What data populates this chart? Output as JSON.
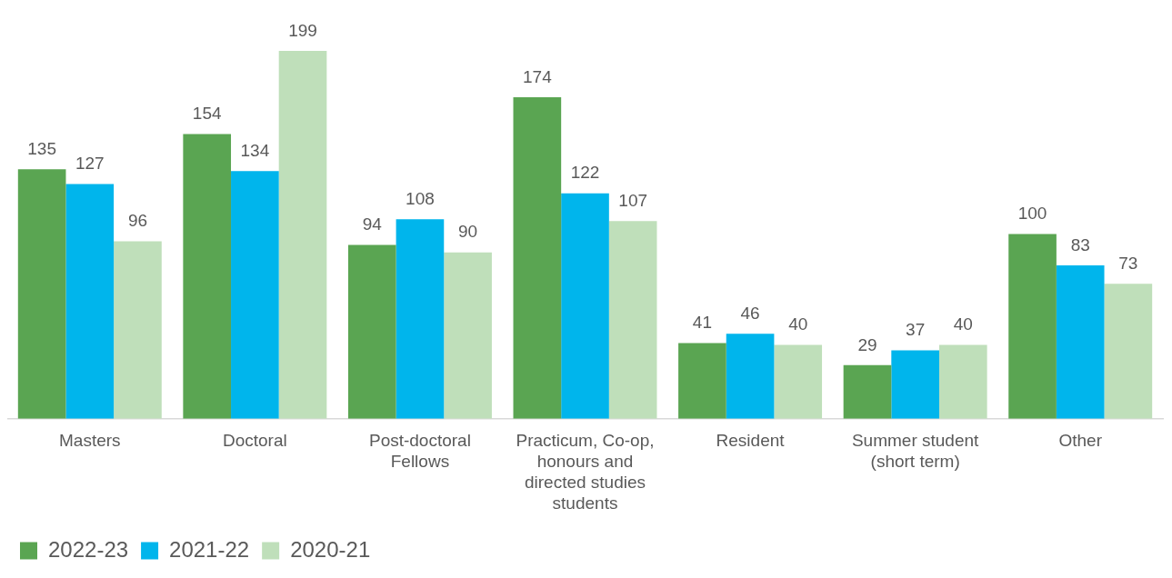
{
  "chart_data": {
    "type": "bar",
    "categories": [
      "Masters",
      "Doctoral",
      "Post-doctoral Fellows",
      "Practicum, Co-op, honours and directed studies students",
      "Resident",
      "Summer student (short term)",
      "Other"
    ],
    "series": [
      {
        "name": "2022-23",
        "color": "#5aa552",
        "values": [
          135,
          154,
          94,
          174,
          41,
          29,
          100
        ]
      },
      {
        "name": "2021-22",
        "color": "#00b5ec",
        "values": [
          127,
          134,
          108,
          122,
          46,
          37,
          83
        ]
      },
      {
        "name": "2020-21",
        "color": "#bfdfba",
        "values": [
          96,
          199,
          90,
          107,
          40,
          40,
          73
        ]
      }
    ],
    "data_labels": true,
    "grid": false,
    "legend": "bottom left"
  }
}
